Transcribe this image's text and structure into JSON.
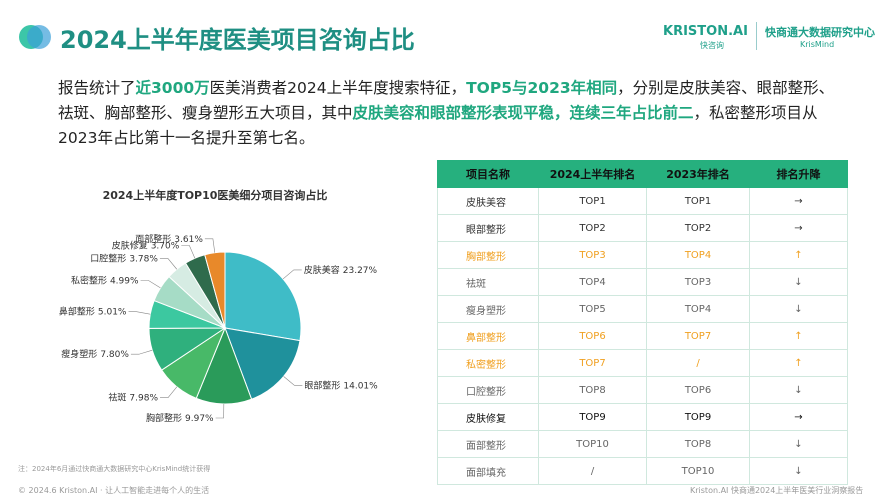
{
  "header": {
    "title": "2024上半年度医美项目咨询占比",
    "logo": "KRISTON.AI",
    "logo_sub": "快咨询",
    "org": "快商通大数据研究中心",
    "org_sub": "KrisMind"
  },
  "paragraph": [
    {
      "text": "报告统计了",
      "highlight": false
    },
    {
      "text": "近3000万",
      "highlight": true
    },
    {
      "text": "医美消费者2024上半年度搜索特征，",
      "highlight": false
    },
    {
      "text": "TOP5与2023年相同",
      "highlight": true
    },
    {
      "text": "，分别是皮肤美容、眼部整形、祛斑、胸部整形、瘦身塑形五大项目，其中",
      "highlight": false
    },
    {
      "text": "皮肤美容和眼部整形表现平稳，连续三年占比前二",
      "highlight": true
    },
    {
      "text": "，私密整形项目从2023年占比第十一名提升至第七名。",
      "highlight": false
    }
  ],
  "chart_data": {
    "type": "pie",
    "title": "2024上半年度TOP10医美细分项目咨询占比",
    "categories": [
      "皮肤美容",
      "眼部整形",
      "胸部整形",
      "祛斑",
      "瘦身塑形",
      "鼻部整形",
      "私密整形",
      "口腔整形",
      "皮肤修复",
      "面部整形"
    ],
    "values": [
      23.27,
      14.01,
      9.97,
      7.98,
      7.8,
      5.01,
      4.99,
      3.78,
      3.7,
      3.61
    ],
    "value_labels": [
      "23.27%",
      "14.01%",
      "9.97%",
      "7.98%",
      "7.80%",
      "5.01%",
      "4.99%",
      "3.78%",
      "3.70%",
      "3.61%"
    ],
    "colors": [
      "#3fbcc7",
      "#1f919c",
      "#2a9b5a",
      "#48b968",
      "#2fb07d",
      "#3cc8a0",
      "#a6dcc6",
      "#d6ece3",
      "#2f6b4c",
      "#e8892a"
    ]
  },
  "table": {
    "headers": [
      "项目名称",
      "2024上半年排名",
      "2023年排名",
      "排名升降"
    ],
    "rows": [
      [
        "皮肤美容",
        "TOP1",
        "TOP1",
        "→"
      ],
      [
        "眼部整形",
        "TOP2",
        "TOP2",
        "→"
      ],
      [
        "胸部整形",
        "TOP3",
        "TOP4",
        "↑"
      ],
      [
        "祛斑",
        "TOP4",
        "TOP3",
        "↓"
      ],
      [
        "瘦身塑形",
        "TOP5",
        "TOP4",
        "↓"
      ],
      [
        "鼻部整形",
        "TOP6",
        "TOP7",
        "↑"
      ],
      [
        "私密整形",
        "TOP7",
        "/",
        "↑"
      ],
      [
        "口腔整形",
        "TOP8",
        "TOP6",
        "↓"
      ],
      [
        "皮肤修复",
        "TOP9",
        "TOP9",
        "→"
      ],
      [
        "面部整形",
        "TOP10",
        "TOP8",
        "↓"
      ],
      [
        "面部填充",
        "/",
        "TOP10",
        "↓"
      ]
    ],
    "row_colors": [
      "#333333",
      "#333333",
      "#f0a020",
      "#666666",
      "#666666",
      "#f0a020",
      "#f0a020",
      "#666666",
      "#111111",
      "#666666",
      "#666666"
    ]
  },
  "footnote": "注：2024年6月通过快商通大数据研究中心KrisMind统计获得",
  "footer": {
    "left": "© 2024.6 Kriston.AI · 让人工智能走进每个人的生活",
    "right": "Kriston.AI 快商通2024上半年医美行业洞察报告"
  }
}
